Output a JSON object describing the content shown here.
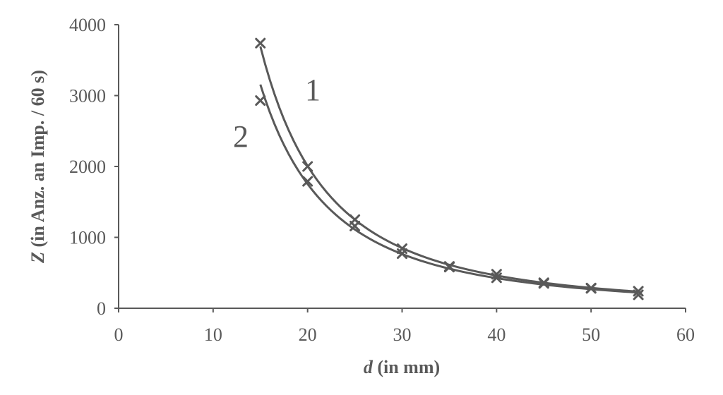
{
  "chart_data": {
    "type": "scatter",
    "title": "",
    "xlabel": {
      "symbol": "d",
      "rest": " (in mm)"
    },
    "ylabel": {
      "symbol": "Z",
      "rest": " (in Anz. an Imp. / 60 s)"
    },
    "xlim": [
      0,
      60
    ],
    "ylim": [
      0,
      4000
    ],
    "x_ticks": [
      0,
      10,
      20,
      30,
      40,
      50,
      60
    ],
    "y_ticks": [
      0,
      1000,
      2000,
      3000,
      4000
    ],
    "grid": false,
    "legend": "none",
    "marker": "x",
    "series": [
      {
        "name": "1",
        "x": [
          15,
          20,
          25,
          30,
          35,
          40,
          45,
          50,
          55
        ],
        "y": [
          3740,
          2000,
          1250,
          840,
          590,
          480,
          360,
          280,
          240
        ]
      },
      {
        "name": "2",
        "x": [
          15,
          20,
          25,
          30,
          35,
          40,
          45,
          50,
          55
        ],
        "y": [
          2930,
          1790,
          1160,
          770,
          580,
          430,
          350,
          285,
          190
        ]
      }
    ],
    "colors": {
      "ink": "#595959"
    }
  }
}
